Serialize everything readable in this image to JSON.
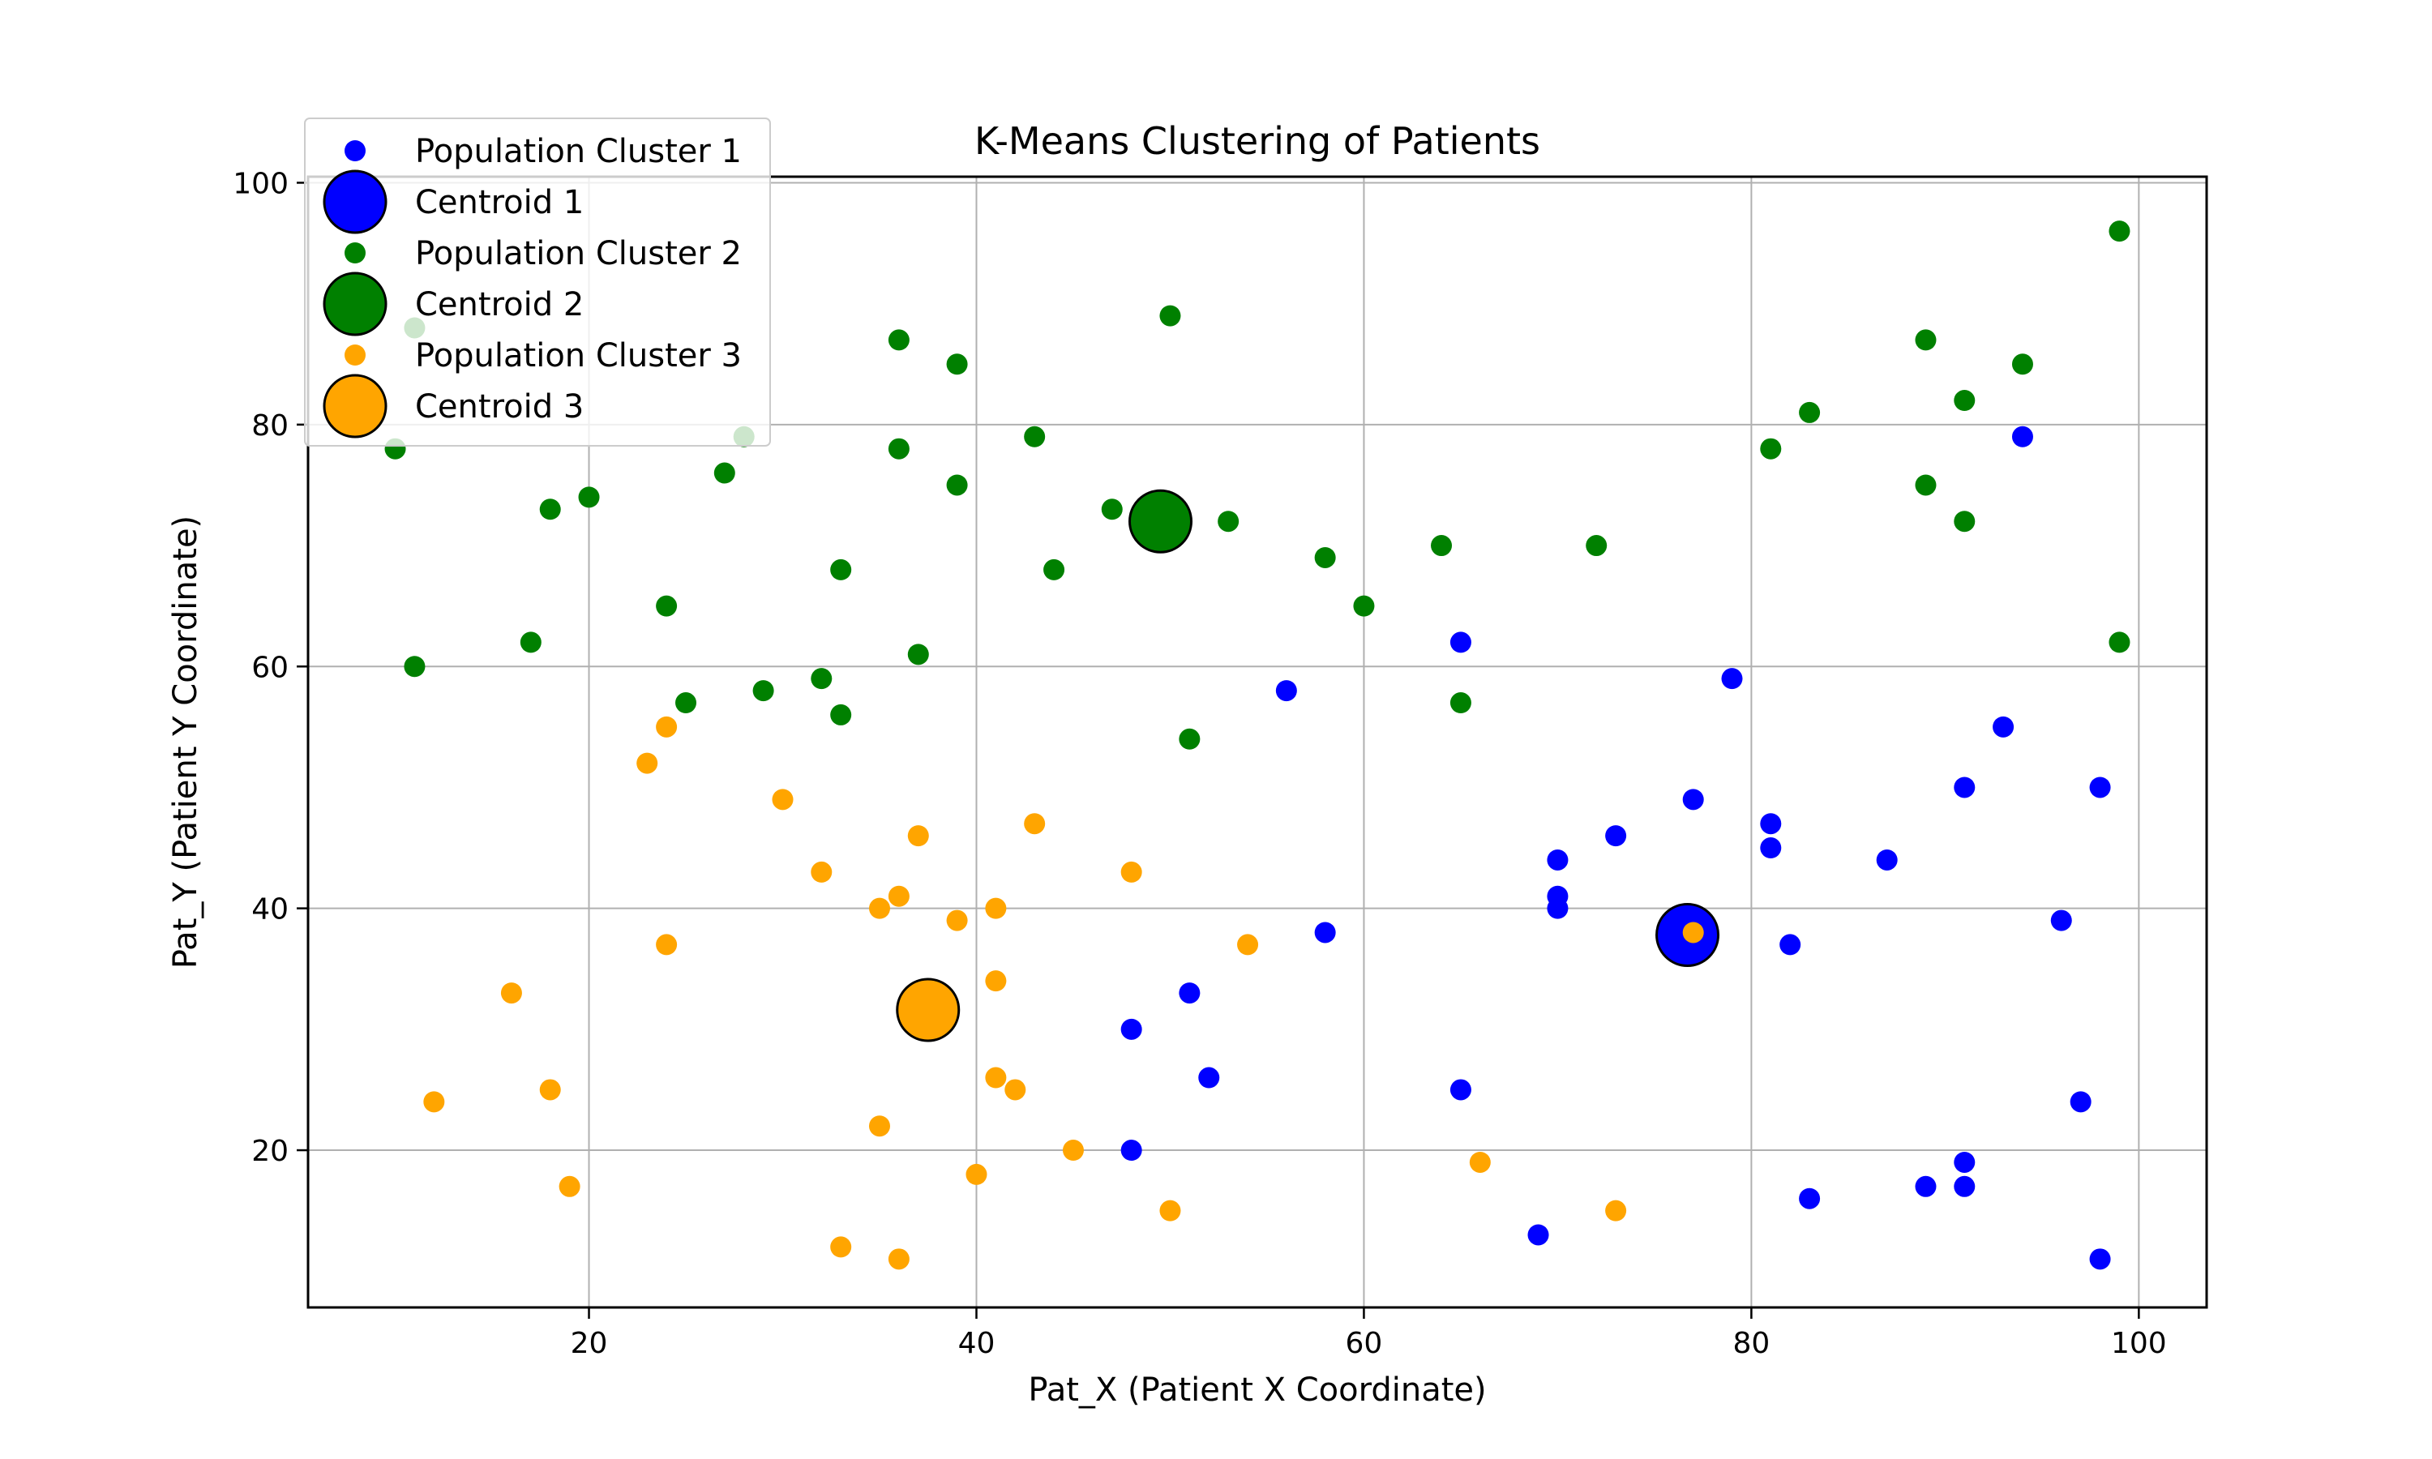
{
  "chart_data": {
    "type": "scatter",
    "title": "K-Means Clustering of Patients",
    "xlabel": "Pat_X (Patient X Coordinate)",
    "ylabel": "Pat_Y (Patient Y Coordinate)",
    "xlim": [
      5.5,
      103.5
    ],
    "ylim": [
      7,
      100.5
    ],
    "xticks": [
      20,
      40,
      60,
      80,
      100
    ],
    "yticks": [
      20,
      40,
      60,
      80,
      100
    ],
    "grid": true,
    "legend_position": "upper-left",
    "series": [
      {
        "name": "Population Cluster 1",
        "color": "#0000ff",
        "points": [
          [
            94,
            79
          ],
          [
            65,
            62
          ],
          [
            56,
            58
          ],
          [
            79,
            59
          ],
          [
            93,
            55
          ],
          [
            91,
            50
          ],
          [
            98,
            50
          ],
          [
            77,
            49
          ],
          [
            81,
            47
          ],
          [
            73,
            46
          ],
          [
            81,
            45
          ],
          [
            70,
            44
          ],
          [
            87,
            44
          ],
          [
            70,
            41
          ],
          [
            70,
            40
          ],
          [
            96,
            39
          ],
          [
            58,
            38
          ],
          [
            82,
            37
          ],
          [
            51,
            33
          ],
          [
            48,
            30
          ],
          [
            52,
            26
          ],
          [
            65,
            25
          ],
          [
            97,
            24
          ],
          [
            48,
            20
          ],
          [
            91,
            19
          ],
          [
            89,
            17
          ],
          [
            91,
            17
          ],
          [
            83,
            16
          ],
          [
            69,
            13
          ],
          [
            98,
            11
          ]
        ]
      },
      {
        "name": "Population Cluster 2",
        "color": "#008000",
        "points": [
          [
            99,
            96
          ],
          [
            50,
            89
          ],
          [
            11,
            88
          ],
          [
            36,
            87
          ],
          [
            89,
            87
          ],
          [
            39,
            85
          ],
          [
            94,
            85
          ],
          [
            91,
            82
          ],
          [
            83,
            81
          ],
          [
            28,
            79
          ],
          [
            43,
            79
          ],
          [
            10,
            78
          ],
          [
            36,
            78
          ],
          [
            81,
            78
          ],
          [
            27,
            76
          ],
          [
            39,
            75
          ],
          [
            89,
            75
          ],
          [
            20,
            74
          ],
          [
            18,
            73
          ],
          [
            47,
            73
          ],
          [
            53,
            72
          ],
          [
            91,
            72
          ],
          [
            64,
            70
          ],
          [
            72,
            70
          ],
          [
            58,
            69
          ],
          [
            33,
            68
          ],
          [
            44,
            68
          ],
          [
            24,
            65
          ],
          [
            60,
            65
          ],
          [
            17,
            62
          ],
          [
            99,
            62
          ],
          [
            37,
            61
          ],
          [
            11,
            60
          ],
          [
            32,
            59
          ],
          [
            29,
            58
          ],
          [
            25,
            57
          ],
          [
            65,
            57
          ],
          [
            33,
            56
          ],
          [
            51,
            54
          ]
        ]
      },
      {
        "name": "Population Cluster 3",
        "color": "#ffa500",
        "points": [
          [
            24,
            55
          ],
          [
            23,
            52
          ],
          [
            30,
            49
          ],
          [
            43,
            47
          ],
          [
            37,
            46
          ],
          [
            32,
            43
          ],
          [
            48,
            43
          ],
          [
            36,
            41
          ],
          [
            35,
            40
          ],
          [
            41,
            40
          ],
          [
            39,
            39
          ],
          [
            77,
            38
          ],
          [
            24,
            37
          ],
          [
            54,
            37
          ],
          [
            41,
            34
          ],
          [
            16,
            33
          ],
          [
            41,
            26
          ],
          [
            18,
            25
          ],
          [
            42,
            25
          ],
          [
            12,
            24
          ],
          [
            35,
            22
          ],
          [
            45,
            20
          ],
          [
            66,
            19
          ],
          [
            40,
            18
          ],
          [
            19,
            17
          ],
          [
            50,
            15
          ],
          [
            73,
            15
          ],
          [
            33,
            12
          ],
          [
            36,
            11
          ]
        ]
      }
    ],
    "centroids": [
      {
        "name": "Centroid 1",
        "color": "#0000ff",
        "x": 76.7,
        "y": 37.8
      },
      {
        "name": "Centroid 2",
        "color": "#008000",
        "x": 49.5,
        "y": 72.0
      },
      {
        "name": "Centroid 3",
        "color": "#ffa500",
        "x": 37.5,
        "y": 31.6
      }
    ],
    "legend": [
      {
        "label": "Population Cluster 1",
        "kind": "point",
        "color": "#0000ff"
      },
      {
        "label": "Centroid 1",
        "kind": "centroid",
        "color": "#0000ff"
      },
      {
        "label": "Population Cluster 2",
        "kind": "point",
        "color": "#008000"
      },
      {
        "label": "Centroid 2",
        "kind": "centroid",
        "color": "#008000"
      },
      {
        "label": "Population Cluster 3",
        "kind": "point",
        "color": "#ffa500"
      },
      {
        "label": "Centroid 3",
        "kind": "centroid",
        "color": "#ffa500"
      }
    ]
  }
}
